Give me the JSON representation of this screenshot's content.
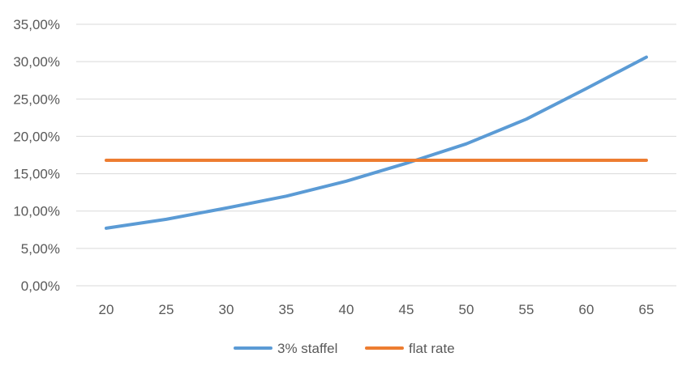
{
  "chart_data": {
    "type": "line",
    "title": "",
    "xlabel": "",
    "ylabel": "",
    "x": [
      20,
      25,
      30,
      35,
      40,
      45,
      50,
      55,
      60,
      65
    ],
    "x_tick_labels": [
      "20",
      "25",
      "30",
      "35",
      "40",
      "45",
      "50",
      "55",
      "60",
      "65"
    ],
    "y_tick_labels": [
      "0,00%",
      "5,00%",
      "10,00%",
      "15,00%",
      "20,00%",
      "25,00%",
      "30,00%",
      "35,00%"
    ],
    "ylim": [
      0,
      35
    ],
    "y_unit": "%",
    "grid": "horizontal",
    "legend_position": "bottom",
    "series": [
      {
        "name": "3% staffel",
        "color": "#5B9BD5",
        "values": [
          7.7,
          8.9,
          10.4,
          12.0,
          14.0,
          16.4,
          19.0,
          22.3,
          26.4,
          30.6
        ]
      },
      {
        "name": "flat rate",
        "color": "#ED7D31",
        "values": [
          16.8,
          16.8,
          16.8,
          16.8,
          16.8,
          16.8,
          16.8,
          16.8,
          16.8,
          16.8
        ]
      }
    ]
  }
}
